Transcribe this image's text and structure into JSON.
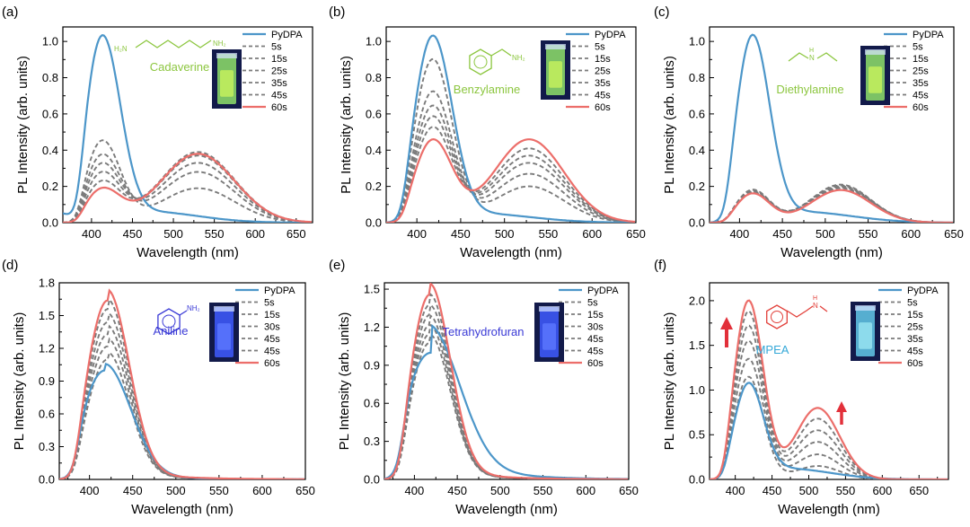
{
  "figure": {
    "series_labels": [
      "PyDPA",
      "5s",
      "15s",
      "25s",
      "35s",
      "45s",
      "60s"
    ],
    "colors": {
      "base": "#4c96c9",
      "final": "#ec6e6a",
      "intermediate": "#7b7b7b",
      "axis": "#000000"
    }
  },
  "chart_data": [
    {
      "type": "line",
      "panel": "(a)",
      "xlabel": "Wavelength (nm)",
      "ylabel": "PL Intensity (arb. units)",
      "xlim": [
        365,
        670
      ],
      "ylim": [
        0,
        1.08
      ],
      "xticks": [
        400,
        450,
        500,
        550,
        600,
        650
      ],
      "yticks": [
        0.0,
        0.2,
        0.4,
        0.6,
        0.8,
        1.0
      ],
      "ydec": 1,
      "legend": [
        "PyDPA",
        "5s",
        "15s",
        "25s",
        "35s",
        "45s",
        "60s"
      ],
      "legend_position": "top-right",
      "annotation": {
        "text": "Cadaverine",
        "color": "#8cc63f",
        "molecule": "cadaverine",
        "vial": "green"
      },
      "series": [
        {
          "name": "PyDPA",
          "p1": 1.0,
          "p2": 0.0,
          "tail": 0.06,
          "start": 0.05
        },
        {
          "name": "5s",
          "p1": 0.45,
          "p2": 0.19
        },
        {
          "name": "15s",
          "p1": 0.37,
          "p2": 0.28
        },
        {
          "name": "25s",
          "p1": 0.32,
          "p2": 0.33
        },
        {
          "name": "35s",
          "p1": 0.27,
          "p2": 0.37
        },
        {
          "name": "45s",
          "p1": 0.22,
          "p2": 0.39
        },
        {
          "name": "60s",
          "p1": 0.18,
          "p2": 0.38
        }
      ],
      "peaks": {
        "c1": 413,
        "c2": 530,
        "w1": 22,
        "w2": 45
      }
    },
    {
      "type": "line",
      "panel": "(b)",
      "xlabel": "Wavelength (nm)",
      "ylabel": "PL Intensity (arb. units)",
      "xlim": [
        365,
        650
      ],
      "ylim": [
        0,
        1.08
      ],
      "xticks": [
        400,
        450,
        500,
        550,
        600,
        650
      ],
      "yticks": [
        0.0,
        0.2,
        0.4,
        0.6,
        0.8,
        1.0
      ],
      "ydec": 1,
      "legend": [
        "PyDPA",
        "5s",
        "15s",
        "25s",
        "35s",
        "45s",
        "60s"
      ],
      "legend_position": "top-right",
      "annotation": {
        "text": "Benzylamine",
        "color": "#8cc63f",
        "molecule": "benzylamine",
        "vial": "green"
      },
      "series": [
        {
          "name": "PyDPA",
          "p1": 1.0,
          "p2": 0.0,
          "tail": 0.05
        },
        {
          "name": "5s",
          "p1": 0.9,
          "p2": 0.2
        },
        {
          "name": "15s",
          "p1": 0.72,
          "p2": 0.27
        },
        {
          "name": "25s",
          "p1": 0.64,
          "p2": 0.33
        },
        {
          "name": "35s",
          "p1": 0.58,
          "p2": 0.37
        },
        {
          "name": "45s",
          "p1": 0.52,
          "p2": 0.41
        },
        {
          "name": "60s",
          "p1": 0.45,
          "p2": 0.46
        }
      ],
      "peaks": {
        "c1": 418,
        "c2": 528,
        "w1": 22,
        "w2": 40
      }
    },
    {
      "type": "line",
      "panel": "(c)",
      "xlabel": "Wavelength (nm)",
      "ylabel": "PL Intensity (arb. units)",
      "xlim": [
        365,
        650
      ],
      "ylim": [
        0,
        1.08
      ],
      "xticks": [
        400,
        450,
        500,
        550,
        600,
        650
      ],
      "yticks": [
        0.0,
        0.2,
        0.4,
        0.6,
        0.8,
        1.0
      ],
      "ydec": 1,
      "legend": [
        "PyDPA",
        "5s",
        "15s",
        "25s",
        "35s",
        "45s",
        "60s"
      ],
      "legend_position": "top-right",
      "annotation": {
        "text": "Diethylamine",
        "color": "#8cc63f",
        "molecule": "diethylamine",
        "vial": "green"
      },
      "series": [
        {
          "name": "PyDPA",
          "p1": 1.0,
          "p2": 0.0,
          "tail": 0.06
        },
        {
          "name": "5s",
          "p1": 0.18,
          "p2": 0.21
        },
        {
          "name": "15s",
          "p1": 0.175,
          "p2": 0.205
        },
        {
          "name": "25s",
          "p1": 0.17,
          "p2": 0.2
        },
        {
          "name": "35s",
          "p1": 0.168,
          "p2": 0.195
        },
        {
          "name": "45s",
          "p1": 0.165,
          "p2": 0.19
        },
        {
          "name": "60s",
          "p1": 0.16,
          "p2": 0.18
        }
      ],
      "peaks": {
        "c1": 415,
        "c2": 518,
        "w1": 20,
        "w2": 35
      }
    },
    {
      "type": "line",
      "panel": "(d)",
      "xlabel": "Wavelength (nm)",
      "ylabel": "PL Intensity (arb. units)",
      "xlim": [
        365,
        650
      ],
      "ylim": [
        0,
        1.8
      ],
      "xticks": [
        400,
        450,
        500,
        550,
        600,
        650
      ],
      "yticks": [
        0.0,
        0.3,
        0.6,
        0.9,
        1.2,
        1.5,
        1.8
      ],
      "ydec": 1,
      "legend": [
        "PyDPA",
        "5s",
        "15s",
        "30s",
        "45s",
        "45s",
        "60s"
      ],
      "legend_position": "top-right",
      "annotation": {
        "text": "Aniline",
        "color": "#3a3ad6",
        "molecule": "aniline",
        "vial": "blue"
      },
      "series": [
        {
          "name": "PyDPA",
          "p1": 1.0,
          "w1": 30,
          "c1": 418
        },
        {
          "name": "5s",
          "p1": 1.1,
          "w1": 25,
          "c1": 421
        },
        {
          "name": "15s",
          "p1": 1.22,
          "w1": 25,
          "c1": 421
        },
        {
          "name": "30s",
          "p1": 1.33,
          "w1": 25,
          "c1": 421
        },
        {
          "name": "45s",
          "p1": 1.44,
          "w1": 25,
          "c1": 421
        },
        {
          "name": "45s",
          "p1": 1.56,
          "w1": 25,
          "c1": 421
        },
        {
          "name": "60s",
          "p1": 1.64,
          "w1": 25,
          "c1": 421
        }
      ],
      "peaks": {
        "c1": 421,
        "w1": 25
      }
    },
    {
      "type": "line",
      "panel": "(e)",
      "xlabel": "Wavelength (nm)",
      "ylabel": "PL Intensity (arb. units)",
      "xlim": [
        365,
        650
      ],
      "ylim": [
        0,
        1.55
      ],
      "xticks": [
        400,
        450,
        500,
        550,
        600,
        650
      ],
      "yticks": [
        0.0,
        0.3,
        0.6,
        0.9,
        1.2,
        1.5
      ],
      "ydec": 1,
      "legend": [
        "PyDPA",
        "5s",
        "15s",
        "30s",
        "45s",
        "45s",
        "60s"
      ],
      "legend_position": "top-right",
      "annotation": {
        "text": "Tetrahydrofuran",
        "color": "#3a3ad6",
        "molecule": "",
        "vial": "blue"
      },
      "series": [
        {
          "name": "PyDPA",
          "p1": 1.0,
          "w1": 35,
          "c1": 419
        },
        {
          "name": "5s",
          "p1": 1.08,
          "w1": 24,
          "c1": 418
        },
        {
          "name": "15s",
          "p1": 1.15,
          "w1": 24,
          "c1": 418
        },
        {
          "name": "30s",
          "p1": 1.22,
          "w1": 24,
          "c1": 418
        },
        {
          "name": "45s",
          "p1": 1.3,
          "w1": 24,
          "c1": 418
        },
        {
          "name": "45s",
          "p1": 1.38,
          "w1": 24,
          "c1": 418
        },
        {
          "name": "60s",
          "p1": 1.46,
          "w1": 24,
          "c1": 418
        }
      ],
      "peaks": {
        "c1": 418,
        "w1": 24
      }
    },
    {
      "type": "line",
      "panel": "(f)",
      "xlabel": "Wavelength (nm)",
      "ylabel": "PL Intensity (arb. units)",
      "xlim": [
        365,
        690
      ],
      "ylim": [
        0,
        2.2
      ],
      "xticks": [
        400,
        450,
        500,
        550,
        600,
        650
      ],
      "yticks": [
        0.0,
        0.5,
        1.0,
        1.5,
        2.0
      ],
      "ydec": 1,
      "legend": [
        "PyDPA",
        "5s",
        "15s",
        "25s",
        "35s",
        "45s",
        "60s"
      ],
      "legend_position": "top-right",
      "annotation": {
        "text": "MPEA",
        "color": "#35a8d8",
        "molecule": "mpea",
        "vial": "cyan"
      },
      "series": [
        {
          "name": "PyDPA",
          "p1": 1.0,
          "p2": 0.0,
          "tail": 0.12
        },
        {
          "name": "5s",
          "p1": 1.15,
          "p2": 0.15
        },
        {
          "name": "15s",
          "p1": 1.35,
          "p2": 0.28
        },
        {
          "name": "25s",
          "p1": 1.55,
          "p2": 0.42
        },
        {
          "name": "35s",
          "p1": 1.72,
          "p2": 0.55
        },
        {
          "name": "45s",
          "p1": 1.88,
          "p2": 0.68
        },
        {
          "name": "60s",
          "p1": 2.0,
          "p2": 0.8
        }
      ],
      "peaks": {
        "c1": 418,
        "c2": 512,
        "w1": 20,
        "w2": 30
      }
    }
  ]
}
